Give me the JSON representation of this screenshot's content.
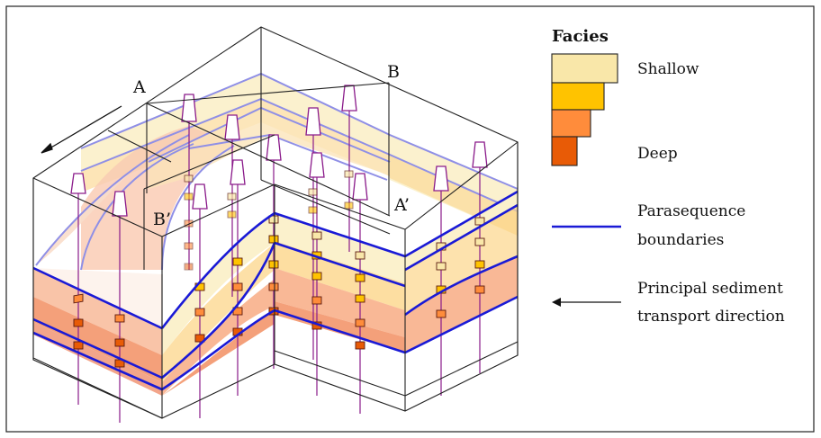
{
  "legend": {
    "title": "Facies",
    "facies": [
      {
        "label": "Shallow",
        "color": "#f9e7a9"
      },
      {
        "label": "",
        "color": "#ffc300"
      },
      {
        "label": "",
        "color": "#ff8c3b"
      },
      {
        "label": "Deep",
        "color": "#e85b06"
      }
    ],
    "parasequence_line_1": "Parasequence",
    "parasequence_line_2": "boundaries",
    "transport_line_1": "Principal sediment",
    "transport_line_2": "transport direction"
  },
  "labels": {
    "a": "A",
    "b": "B",
    "a_prime": "A’",
    "b_prime": "B’"
  },
  "colors": {
    "boundary_line": "#1a1ad6",
    "boundary_line_faint": "#8f8fe6",
    "well_line": "#8a1a8a",
    "shallow_band": "#fbf1cc",
    "mid_band": "#fcd68a",
    "orange_band": "#f9b896",
    "deep_band": "#f4a07a"
  }
}
